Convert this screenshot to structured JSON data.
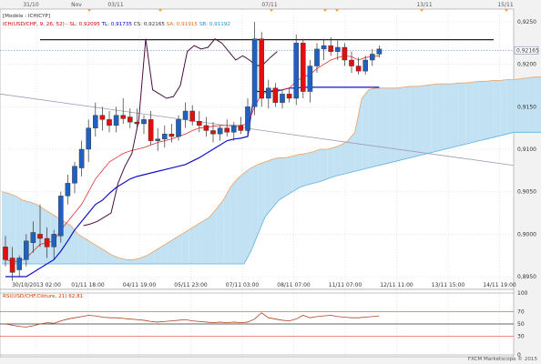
{
  "header": {
    "model_label": "[Modèle : ICHICYP]",
    "legend": [
      {
        "text": "ICH(USD/CHF, 9, 26, 52) - ",
        "color": "#cc0000"
      },
      {
        "text": "SL: 0,92095",
        "color": "#cc0000"
      },
      {
        "text": "TL: 0,91735",
        "color": "#0000cc"
      },
      {
        "text": "CS: 0,92165",
        "color": "#333333"
      },
      {
        "text": "SA: 0,91915",
        "color": "#e07020"
      },
      {
        "text": "SB: 0,91192",
        "color": "#2090d0"
      }
    ]
  },
  "top_dates": [
    "31/10",
    "Nov",
    "03/11",
    "07/11",
    "13/11",
    "15/11"
  ],
  "footer": {
    "watermark": "FXCM Marketscope © 2015"
  },
  "chart_data": {
    "type": "candlestick",
    "price_axis": {
      "ticks": [
        "0,9250",
        "0,9200",
        "0,9150",
        "0,9100",
        "0,9050",
        "0,9000",
        "0,8950"
      ],
      "range": [
        0.8935,
        0.9265
      ],
      "current_price": "0,92165",
      "current_value": 0.92165
    },
    "x_axis_labels": [
      "30/10/2013 02:00",
      "01/11 18:00",
      "04/11 19:00",
      "05/11 23:00",
      "07/11 03:00",
      "08/11 07:00",
      "11/11 07:00",
      "12/11 11:00",
      "13/11 15:00",
      "14/11 19:00"
    ],
    "candles": [
      {
        "o": 0.8985,
        "h": 0.8998,
        "l": 0.8962,
        "c": 0.897
      },
      {
        "o": 0.8972,
        "h": 0.8985,
        "l": 0.8945,
        "c": 0.8955
      },
      {
        "o": 0.8958,
        "h": 0.8975,
        "l": 0.895,
        "c": 0.8972
      },
      {
        "o": 0.897,
        "h": 0.9,
        "l": 0.8962,
        "c": 0.8992
      },
      {
        "o": 0.899,
        "h": 0.9015,
        "l": 0.8978,
        "c": 0.9002
      },
      {
        "o": 0.9,
        "h": 0.9035,
        "l": 0.8985,
        "c": 0.8995
      },
      {
        "o": 0.8995,
        "h": 0.9008,
        "l": 0.8972,
        "c": 0.8985
      },
      {
        "o": 0.8985,
        "h": 0.9005,
        "l": 0.897,
        "c": 0.9
      },
      {
        "o": 0.8998,
        "h": 0.905,
        "l": 0.899,
        "c": 0.9045
      },
      {
        "o": 0.9045,
        "h": 0.907,
        "l": 0.9035,
        "c": 0.906
      },
      {
        "o": 0.906,
        "h": 0.9085,
        "l": 0.9048,
        "c": 0.908
      },
      {
        "o": 0.9078,
        "h": 0.911,
        "l": 0.9068,
        "c": 0.91
      },
      {
        "o": 0.91,
        "h": 0.9135,
        "l": 0.9085,
        "c": 0.9125
      },
      {
        "o": 0.9125,
        "h": 0.9155,
        "l": 0.9115,
        "c": 0.914
      },
      {
        "o": 0.914,
        "h": 0.915,
        "l": 0.9122,
        "c": 0.9135
      },
      {
        "o": 0.9135,
        "h": 0.9145,
        "l": 0.912,
        "c": 0.9128
      },
      {
        "o": 0.9128,
        "h": 0.915,
        "l": 0.912,
        "c": 0.914
      },
      {
        "o": 0.914,
        "h": 0.916,
        "l": 0.913,
        "c": 0.9136
      },
      {
        "o": 0.9138,
        "h": 0.9148,
        "l": 0.9125,
        "c": 0.9132
      },
      {
        "o": 0.9132,
        "h": 0.9148,
        "l": 0.9122,
        "c": 0.913
      },
      {
        "o": 0.913,
        "h": 0.914,
        "l": 0.9118,
        "c": 0.9135
      },
      {
        "o": 0.9135,
        "h": 0.9145,
        "l": 0.9105,
        "c": 0.911
      },
      {
        "o": 0.911,
        "h": 0.9125,
        "l": 0.9098,
        "c": 0.9112
      },
      {
        "o": 0.9112,
        "h": 0.9128,
        "l": 0.9102,
        "c": 0.9118
      },
      {
        "o": 0.9118,
        "h": 0.913,
        "l": 0.9108,
        "c": 0.9115
      },
      {
        "o": 0.9115,
        "h": 0.914,
        "l": 0.911,
        "c": 0.9135
      },
      {
        "o": 0.9135,
        "h": 0.9155,
        "l": 0.9125,
        "c": 0.9145
      },
      {
        "o": 0.9145,
        "h": 0.9152,
        "l": 0.9128,
        "c": 0.9133
      },
      {
        "o": 0.9133,
        "h": 0.9145,
        "l": 0.912,
        "c": 0.9128
      },
      {
        "o": 0.9128,
        "h": 0.9138,
        "l": 0.9115,
        "c": 0.9122
      },
      {
        "o": 0.9122,
        "h": 0.9132,
        "l": 0.9108,
        "c": 0.9118
      },
      {
        "o": 0.9118,
        "h": 0.9128,
        "l": 0.911,
        "c": 0.9125
      },
      {
        "o": 0.9125,
        "h": 0.9135,
        "l": 0.9115,
        "c": 0.912
      },
      {
        "o": 0.912,
        "h": 0.9132,
        "l": 0.911,
        "c": 0.9128
      },
      {
        "o": 0.9128,
        "h": 0.9138,
        "l": 0.9118,
        "c": 0.9122
      },
      {
        "o": 0.9122,
        "h": 0.916,
        "l": 0.9115,
        "c": 0.915
      },
      {
        "o": 0.915,
        "h": 0.925,
        "l": 0.914,
        "c": 0.923
      },
      {
        "o": 0.923,
        "h": 0.9238,
        "l": 0.915,
        "c": 0.916
      },
      {
        "o": 0.916,
        "h": 0.9182,
        "l": 0.9148,
        "c": 0.9172
      },
      {
        "o": 0.9172,
        "h": 0.9178,
        "l": 0.915,
        "c": 0.9155
      },
      {
        "o": 0.9155,
        "h": 0.917,
        "l": 0.9148,
        "c": 0.9165
      },
      {
        "o": 0.9165,
        "h": 0.9172,
        "l": 0.9155,
        "c": 0.916
      },
      {
        "o": 0.916,
        "h": 0.9235,
        "l": 0.9152,
        "c": 0.9225
      },
      {
        "o": 0.9225,
        "h": 0.923,
        "l": 0.916,
        "c": 0.9168
      },
      {
        "o": 0.9168,
        "h": 0.9205,
        "l": 0.9155,
        "c": 0.9198
      },
      {
        "o": 0.9198,
        "h": 0.9225,
        "l": 0.919,
        "c": 0.9218
      },
      {
        "o": 0.9218,
        "h": 0.923,
        "l": 0.9205,
        "c": 0.9222
      },
      {
        "o": 0.9222,
        "h": 0.9232,
        "l": 0.921,
        "c": 0.9215
      },
      {
        "o": 0.9215,
        "h": 0.9228,
        "l": 0.9205,
        "c": 0.922
      },
      {
        "o": 0.922,
        "h": 0.9225,
        "l": 0.9198,
        "c": 0.9205
      },
      {
        "o": 0.9205,
        "h": 0.9215,
        "l": 0.919,
        "c": 0.9198
      },
      {
        "o": 0.9198,
        "h": 0.9208,
        "l": 0.9188,
        "c": 0.9192
      },
      {
        "o": 0.9192,
        "h": 0.921,
        "l": 0.9188,
        "c": 0.9205
      },
      {
        "o": 0.9205,
        "h": 0.9218,
        "l": 0.9198,
        "c": 0.9212
      },
      {
        "o": 0.9212,
        "h": 0.9222,
        "l": 0.9208,
        "c": 0.9218
      }
    ],
    "tenkan": [
      0.897,
      0.8968,
      0.8968,
      0.8972,
      0.898,
      0.8988,
      0.899,
      0.8992,
      0.9005,
      0.9015,
      0.9025,
      0.9035,
      0.905,
      0.9065,
      0.9075,
      0.9085,
      0.909,
      0.9095,
      0.9098,
      0.91,
      0.9102,
      0.9105,
      0.9108,
      0.911,
      0.9112,
      0.9115,
      0.9118,
      0.9122,
      0.9125,
      0.9126,
      0.9127,
      0.9128,
      0.9128,
      0.9128,
      0.9128,
      0.913,
      0.915,
      0.9165,
      0.9168,
      0.917,
      0.917,
      0.9172,
      0.918,
      0.9185,
      0.9188,
      0.9195,
      0.92,
      0.9205,
      0.9208,
      0.921,
      0.9209,
      0.9205,
      0.9208,
      0.9209,
      0.921
    ],
    "kijun": [
      0.895,
      0.895,
      0.895,
      0.895,
      0.8955,
      0.896,
      0.8965,
      0.897,
      0.898,
      0.8992,
      0.9005,
      0.9015,
      0.9025,
      0.9035,
      0.904,
      0.9048,
      0.9055,
      0.906,
      0.9065,
      0.9068,
      0.907,
      0.9072,
      0.9074,
      0.9076,
      0.9078,
      0.908,
      0.9082,
      0.9086,
      0.909,
      0.9095,
      0.91,
      0.9105,
      0.911,
      0.9112,
      0.9113,
      0.9115,
      0.9168,
      0.9168,
      0.9168,
      0.9168,
      0.917,
      0.9172,
      0.9172,
      0.9173,
      0.9173,
      0.9173,
      0.9173,
      0.9173,
      0.9173,
      0.9173,
      0.9173,
      0.9173,
      0.9173,
      0.9173,
      0.9173
    ],
    "chikou": [
      0.901,
      0.9012,
      0.9015,
      0.902,
      0.9025,
      0.906,
      0.908,
      0.9095,
      0.9135,
      0.923,
      0.917,
      0.9165,
      0.916,
      0.9162,
      0.9175,
      0.9215,
      0.9222,
      0.9218,
      0.922,
      0.923,
      0.9225,
      0.9215,
      0.9205,
      0.921,
      0.9205,
      0.9198,
      0.92,
      0.9208,
      0.9215
    ],
    "senkou_a": [
      0.905,
      0.9048,
      0.9045,
      0.904,
      0.9038,
      0.9035,
      0.903,
      0.9025,
      0.902,
      0.9015,
      0.901,
      0.9,
      0.8995,
      0.899,
      0.8985,
      0.898,
      0.8975,
      0.8972,
      0.897,
      0.897,
      0.8972,
      0.8975,
      0.898,
      0.8985,
      0.899,
      0.8995,
      0.9,
      0.9005,
      0.901,
      0.9015,
      0.902,
      0.903,
      0.904,
      0.9055,
      0.9065,
      0.9072,
      0.9078,
      0.9082,
      0.9085,
      0.9088,
      0.909,
      0.909,
      0.9092,
      0.9094,
      0.9095,
      0.9097,
      0.91,
      0.91,
      0.9102,
      0.9105,
      0.911,
      0.912,
      0.916,
      0.917,
      0.9172,
      0.9172,
      0.9172,
      0.9172,
      0.9173,
      0.9174,
      0.9174,
      0.9175,
      0.9176,
      0.9177,
      0.9177,
      0.9177,
      0.9178,
      0.9178,
      0.9179,
      0.918,
      0.918,
      0.9181,
      0.9181,
      0.9182,
      0.9182,
      0.9183,
      0.9184,
      0.9185,
      0.9185,
      0.9186,
      0.9188
    ],
    "senkou_b": [
      0.8965,
      0.8965,
      0.8965,
      0.8965,
      0.8965,
      0.8965,
      0.8965,
      0.8965,
      0.8965,
      0.8965,
      0.8965,
      0.8965,
      0.8965,
      0.8965,
      0.8965,
      0.8965,
      0.8965,
      0.8965,
      0.8965,
      0.8965,
      0.8965,
      0.8965,
      0.8965,
      0.8965,
      0.8965,
      0.8965,
      0.8965,
      0.8965,
      0.8965,
      0.8965,
      0.8965,
      0.8965,
      0.8965,
      0.8965,
      0.8965,
      0.8965,
      0.898,
      0.9,
      0.902,
      0.903,
      0.904,
      0.9045,
      0.905,
      0.9055,
      0.9058,
      0.906,
      0.9062,
      0.9065,
      0.9068,
      0.907,
      0.9072,
      0.9074,
      0.9076,
      0.9078,
      0.908,
      0.9082,
      0.9084,
      0.9086,
      0.9088,
      0.909,
      0.9092,
      0.9094,
      0.9096,
      0.9098,
      0.91,
      0.9102,
      0.9104,
      0.9106,
      0.9108,
      0.911,
      0.9112,
      0.9114,
      0.9116,
      0.9118,
      0.912,
      0.912,
      0.912,
      0.912,
      0.912,
      0.912,
      0.912
    ],
    "horizontal_line": 0.9229,
    "trend_line": {
      "from": 0.9165,
      "to": 0.9081
    },
    "rsi": {
      "label": "RSI(USD/CHF.Clôture, 21) 62,81",
      "ticks": [
        "100",
        "70",
        "50",
        "30",
        "0"
      ],
      "levels": [
        100,
        70,
        50,
        30,
        0
      ],
      "values": [
        50,
        48,
        46,
        45,
        47,
        50,
        52,
        51,
        55,
        58,
        60,
        62,
        64,
        63,
        61,
        60,
        60,
        59,
        58,
        57,
        56,
        54,
        53,
        54,
        55,
        56,
        57,
        55,
        54,
        53,
        52,
        53,
        52,
        53,
        52,
        53,
        58,
        68,
        60,
        58,
        56,
        55,
        58,
        64,
        60,
        62,
        63,
        64,
        62,
        61,
        60,
        60,
        61,
        62,
        63
      ]
    }
  }
}
